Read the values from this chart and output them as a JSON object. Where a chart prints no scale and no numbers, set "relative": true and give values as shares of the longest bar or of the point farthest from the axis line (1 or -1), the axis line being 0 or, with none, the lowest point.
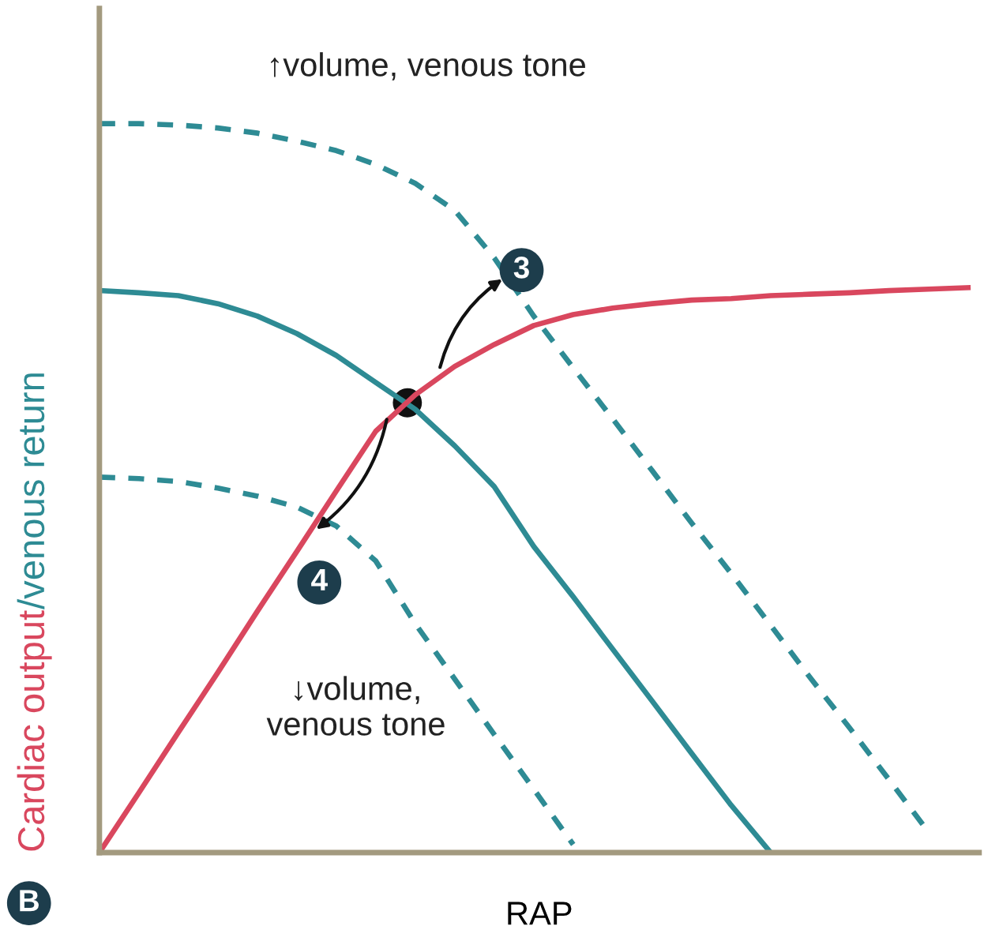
{
  "chart_data": {
    "type": "line",
    "relative": true,
    "xlabel": "RAP",
    "ylabel": "Cardiac output/venous return",
    "categories": [
      null,
      null,
      null,
      null,
      null,
      null,
      null,
      null,
      null,
      null,
      null,
      null,
      null,
      null,
      null,
      null,
      null,
      null,
      null,
      null,
      null,
      null,
      null
    ],
    "series": [
      {
        "color": "#2e8b94",
        "line_style": "dashed",
        "values": [
          1,
          1,
          0.998,
          0.994,
          0.987,
          0.976,
          0.963,
          0.944,
          0.918,
          0.881,
          0.816,
          0.736,
          0.665,
          0.595,
          0.524,
          0.452,
          0.383,
          0.312,
          0.24,
          0.171,
          0.1,
          0.028,
          null
        ]
      },
      {
        "color": "#2e8b94",
        "line_style": "dashed",
        "values": [
          0.515,
          0.513,
          0.509,
          0.5,
          0.489,
          0.474,
          0.448,
          0.4,
          0.314,
          0.238,
          0.162,
          0.087,
          0.011,
          null,
          null,
          null,
          null,
          null,
          null,
          null,
          null,
          null,
          null
        ]
      },
      {
        "color": "#2e8b94",
        "line_style": "solid",
        "values": [
          0.771,
          0.768,
          0.764,
          0.753,
          0.736,
          0.712,
          0.682,
          0.645,
          0.608,
          0.558,
          0.502,
          0.42,
          0.351,
          0.279,
          0.208,
          0.136,
          0.065,
          0,
          null,
          null,
          null,
          null,
          null
        ]
      },
      {
        "color": "#d9475e",
        "line_style": "solid",
        "values": [
          0,
          0.082,
          0.165,
          0.247,
          0.331,
          0.413,
          0.496,
          0.578,
          0.628,
          0.667,
          0.697,
          0.723,
          0.738,
          0.747,
          0.753,
          0.758,
          0.76,
          0.764,
          0.766,
          0.768,
          0.771,
          0.773,
          0.775
        ]
      }
    ],
    "annotations": [
      "↑volume, venous tone",
      "↓volume,\nvenous tone",
      "3",
      "4",
      "B"
    ],
    "legend": false,
    "marker": "none"
  }
}
